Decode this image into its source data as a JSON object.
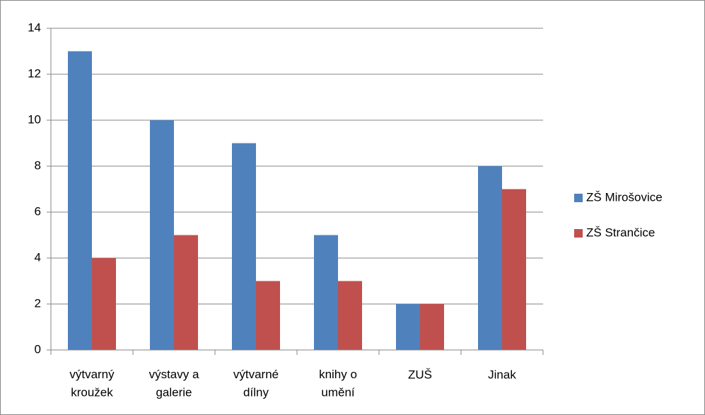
{
  "chart_data": {
    "type": "bar",
    "categories": [
      "výtvarný\nkroužek",
      "výstavy a\ngalerie",
      "výtvarné\ndílny",
      "knihy o\numění",
      "ZUŠ",
      "Jinak"
    ],
    "series": [
      {
        "name": "ZŠ Mirošovice",
        "color": "#4f81bd",
        "values": [
          13,
          10,
          9,
          5,
          2,
          8
        ]
      },
      {
        "name": "ZŠ Strančice",
        "color": "#c0504d",
        "values": [
          4,
          5,
          3,
          3,
          2,
          7
        ]
      }
    ],
    "ylim": [
      0,
      14
    ],
    "yticks": [
      0,
      2,
      4,
      6,
      8,
      10,
      12,
      14
    ],
    "grid": true,
    "legend": "right"
  }
}
